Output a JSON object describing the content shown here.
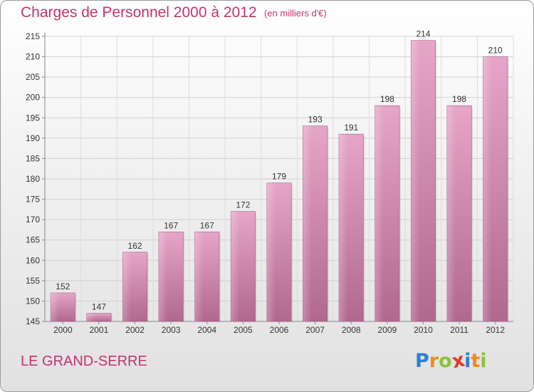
{
  "header": {
    "title": "Charges de Personnel 2000 à 2012",
    "subtitle": "(en milliers d'€)"
  },
  "footer": {
    "place": "LE GRAND-SERRE",
    "logo_letters": [
      "P",
      "r",
      "o",
      "x",
      "i",
      "t",
      "i"
    ],
    "logo_colors": [
      "#2e7fd0",
      "#f08a1c",
      "#8ac23c",
      "#e23a2e",
      "#2e7fd0",
      "#f08a1c",
      "#8ac23c"
    ]
  },
  "chart_data": {
    "type": "bar",
    "title": "Charges de Personnel 2000 à 2012",
    "subtitle": "(en milliers d'€)",
    "categories": [
      "2000",
      "2001",
      "2002",
      "2003",
      "2004",
      "2005",
      "2006",
      "2007",
      "2008",
      "2009",
      "2010",
      "2011",
      "2012"
    ],
    "values": [
      152,
      147,
      162,
      167,
      167,
      172,
      179,
      193,
      191,
      198,
      214,
      198,
      210
    ],
    "ylim": [
      145,
      215
    ],
    "yticks": [
      145,
      150,
      155,
      160,
      165,
      170,
      175,
      180,
      185,
      190,
      195,
      200,
      205,
      210,
      215
    ],
    "grid": true,
    "bar_color": "#d98ab4",
    "label_color": "#333333"
  }
}
